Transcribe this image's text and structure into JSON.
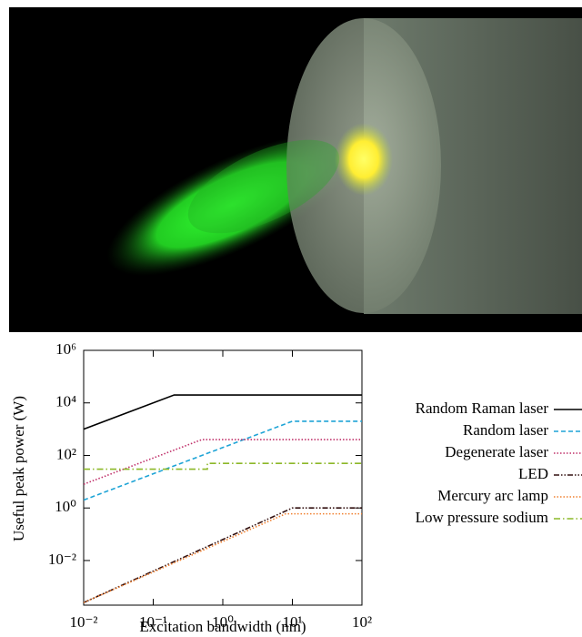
{
  "chart_data": {
    "type": "line",
    "xlabel": "Excitation bandwidth (nm)",
    "ylabel": "Useful peak power (W)",
    "log_x": true,
    "log_y": true,
    "xlim": [
      0.01,
      100
    ],
    "ylim": [
      0.0002,
      1000000
    ],
    "xticks": [
      {
        "value": 0.01,
        "label": "10⁻²"
      },
      {
        "value": 0.1,
        "label": "10⁻¹"
      },
      {
        "value": 1,
        "label": "10⁰"
      },
      {
        "value": 10,
        "label": "10¹"
      },
      {
        "value": 100,
        "label": "10²"
      }
    ],
    "yticks": [
      {
        "value": 0.01,
        "label": "10⁻²"
      },
      {
        "value": 1,
        "label": "10⁰"
      },
      {
        "value": 100,
        "label": "10²"
      },
      {
        "value": 10000,
        "label": "10⁴"
      },
      {
        "value": 1000000,
        "label": "10⁶"
      }
    ],
    "legend": "right",
    "series": [
      {
        "name": "Random Raman laser",
        "color": "#000000",
        "dash": "solid",
        "x": [
          0.01,
          0.2,
          100
        ],
        "values": [
          1000,
          20000,
          20000
        ]
      },
      {
        "name": "Random laser",
        "color": "#1ea4d6",
        "dash": "dashed",
        "x": [
          0.01,
          10,
          100
        ],
        "values": [
          2,
          2000,
          2000
        ]
      },
      {
        "name": "Degenerate laser",
        "color": "#c0306a",
        "dash": "dotted",
        "x": [
          0.01,
          0.5,
          100
        ],
        "values": [
          8,
          400,
          400
        ]
      },
      {
        "name": "LED",
        "color": "#331111",
        "dash": "dashdotdot",
        "x": [
          0.01,
          10,
          100
        ],
        "values": [
          0.00025,
          1,
          1
        ]
      },
      {
        "name": "Mercury arc lamp",
        "color": "#f08030",
        "dash": "dotted",
        "x": [
          0.01,
          8,
          100
        ],
        "values": [
          0.00025,
          0.6,
          0.6
        ]
      },
      {
        "name": "Low pressure sodium",
        "color": "#8cb828",
        "dash": "dashdot",
        "x": [
          0.01,
          0.6,
          0.6,
          100
        ],
        "values": [
          30,
          30,
          50,
          50
        ]
      }
    ]
  }
}
